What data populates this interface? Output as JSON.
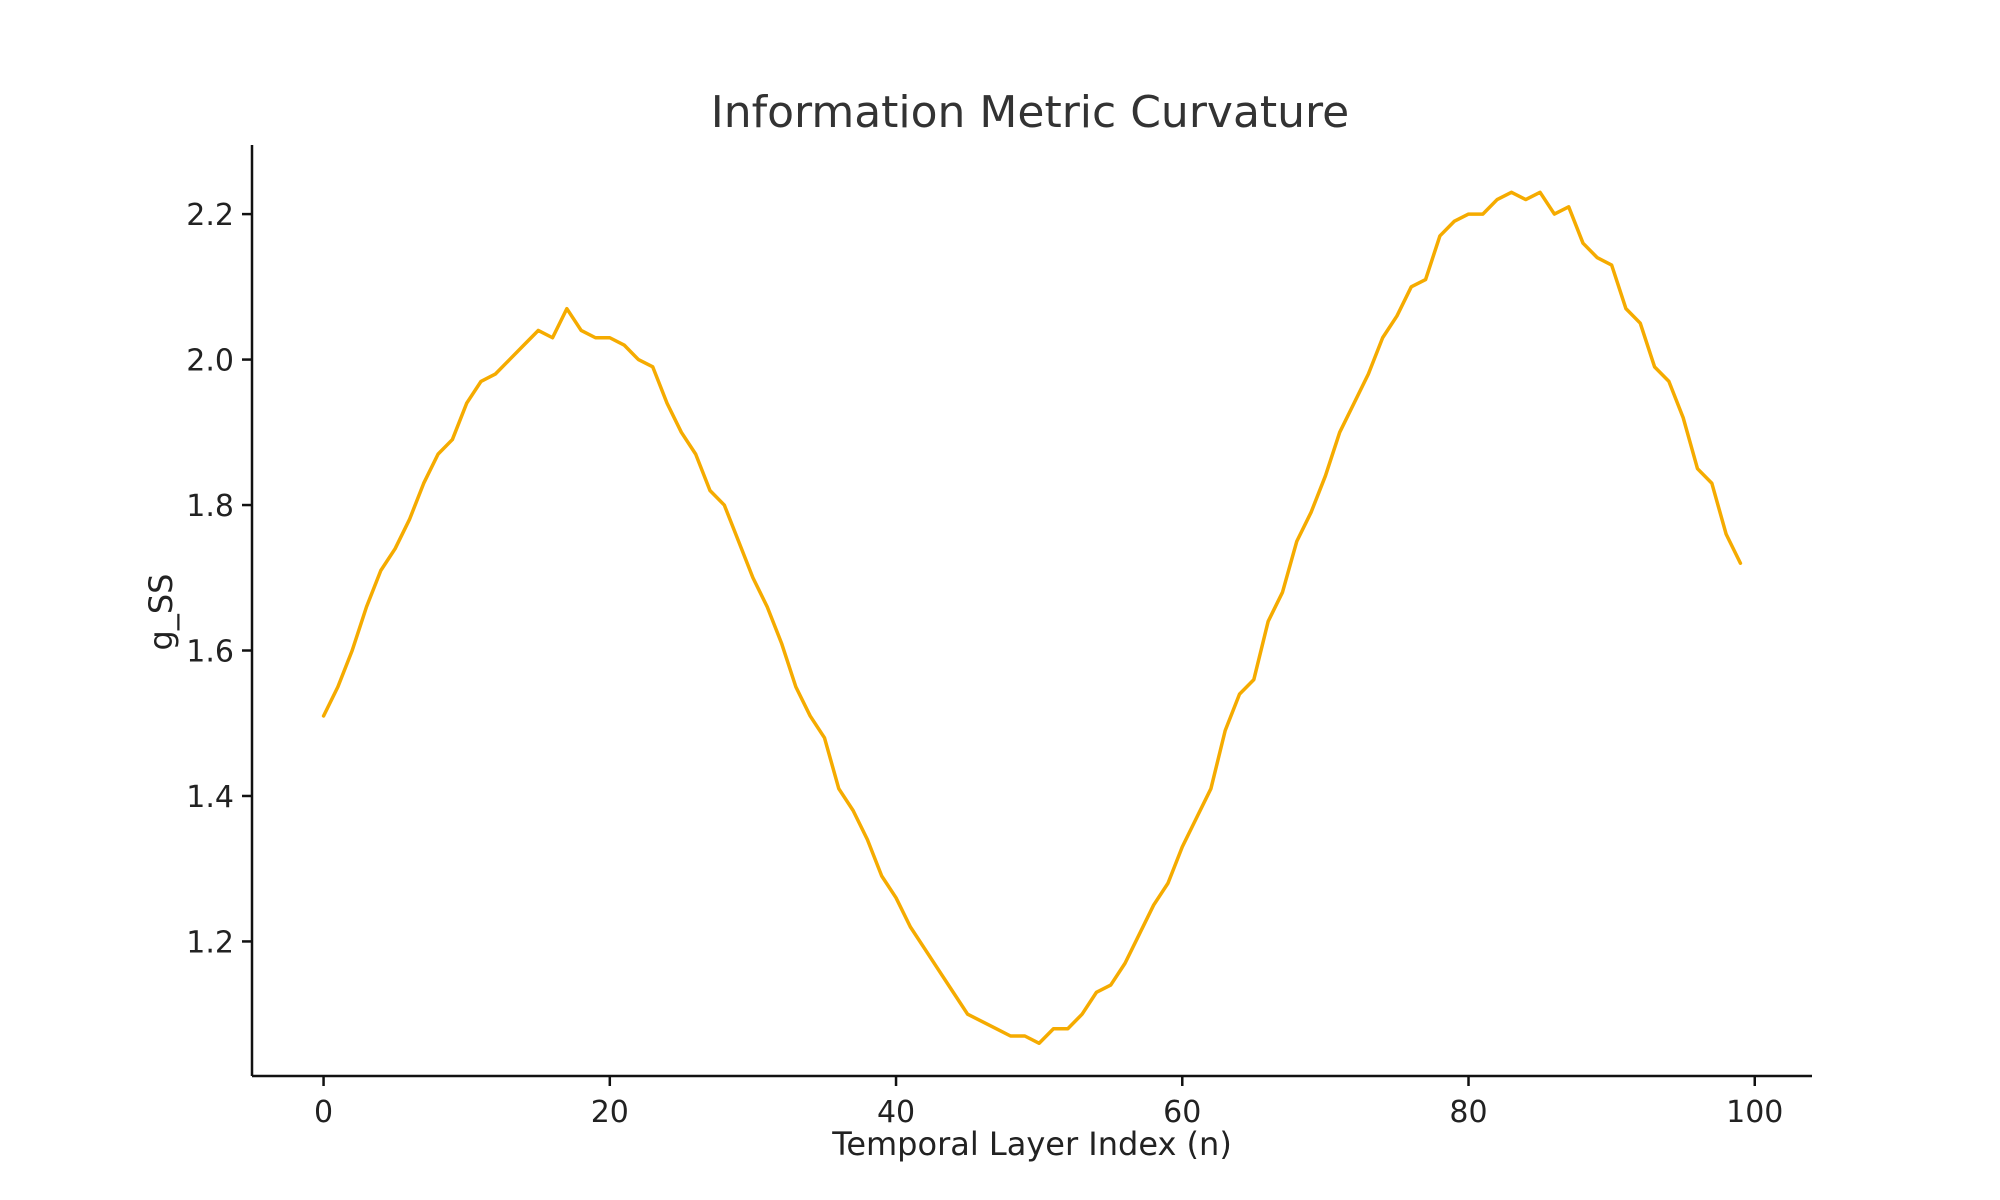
{
  "chart_data": {
    "type": "line",
    "title": "Information Metric Curvature",
    "xlabel": "Temporal Layer Index (n)",
    "ylabel": "g_SS",
    "xlim": [
      -5,
      104
    ],
    "ylim": [
      1.015,
      2.295
    ],
    "xticks": [
      0,
      20,
      40,
      60,
      80,
      100
    ],
    "yticks": [
      1.2,
      1.4,
      1.6,
      1.8,
      2.0,
      2.2
    ],
    "xtick_labels": [
      "0",
      "20",
      "40",
      "60",
      "80",
      "100"
    ],
    "ytick_labels": [
      "1.2",
      "1.4",
      "1.6",
      "1.8",
      "2.0",
      "2.2"
    ],
    "grid": false,
    "series": [
      {
        "color": "#f5ab00",
        "x": [
          0,
          1,
          2,
          3,
          4,
          5,
          6,
          7,
          8,
          9,
          10,
          11,
          12,
          13,
          14,
          15,
          16,
          17,
          18,
          19,
          20,
          21,
          22,
          23,
          24,
          25,
          26,
          27,
          28,
          29,
          30,
          31,
          32,
          33,
          34,
          35,
          36,
          37,
          38,
          39,
          40,
          41,
          42,
          43,
          44,
          45,
          46,
          47,
          48,
          49,
          50,
          51,
          52,
          53,
          54,
          55,
          56,
          57,
          58,
          59,
          60,
          61,
          62,
          63,
          64,
          65,
          66,
          67,
          68,
          69,
          70,
          71,
          72,
          73,
          74,
          75,
          76,
          77,
          78,
          79,
          80,
          81,
          82,
          83,
          84,
          85,
          86,
          87,
          88,
          89,
          90,
          91,
          92,
          93,
          94,
          95,
          96,
          97,
          98,
          99
        ],
        "y": [
          1.51,
          1.55,
          1.6,
          1.66,
          1.71,
          1.74,
          1.78,
          1.83,
          1.87,
          1.89,
          1.94,
          1.97,
          1.98,
          2.0,
          2.02,
          2.04,
          2.03,
          2.07,
          2.04,
          2.03,
          2.03,
          2.02,
          2.0,
          1.99,
          1.94,
          1.9,
          1.87,
          1.82,
          1.8,
          1.75,
          1.7,
          1.66,
          1.61,
          1.55,
          1.51,
          1.48,
          1.41,
          1.38,
          1.34,
          1.29,
          1.26,
          1.22,
          1.19,
          1.16,
          1.13,
          1.1,
          1.09,
          1.08,
          1.07,
          1.07,
          1.06,
          1.08,
          1.08,
          1.1,
          1.13,
          1.14,
          1.17,
          1.21,
          1.25,
          1.28,
          1.33,
          1.37,
          1.41,
          1.49,
          1.54,
          1.56,
          1.64,
          1.68,
          1.75,
          1.79,
          1.84,
          1.9,
          1.94,
          1.98,
          2.03,
          2.06,
          2.1,
          2.11,
          2.17,
          2.19,
          2.2,
          2.2,
          2.22,
          2.23,
          2.22,
          2.23,
          2.2,
          2.21,
          2.16,
          2.14,
          2.13,
          2.07,
          2.05,
          1.99,
          1.97,
          1.92,
          1.85,
          1.83,
          1.76,
          1.72
        ]
      }
    ]
  }
}
